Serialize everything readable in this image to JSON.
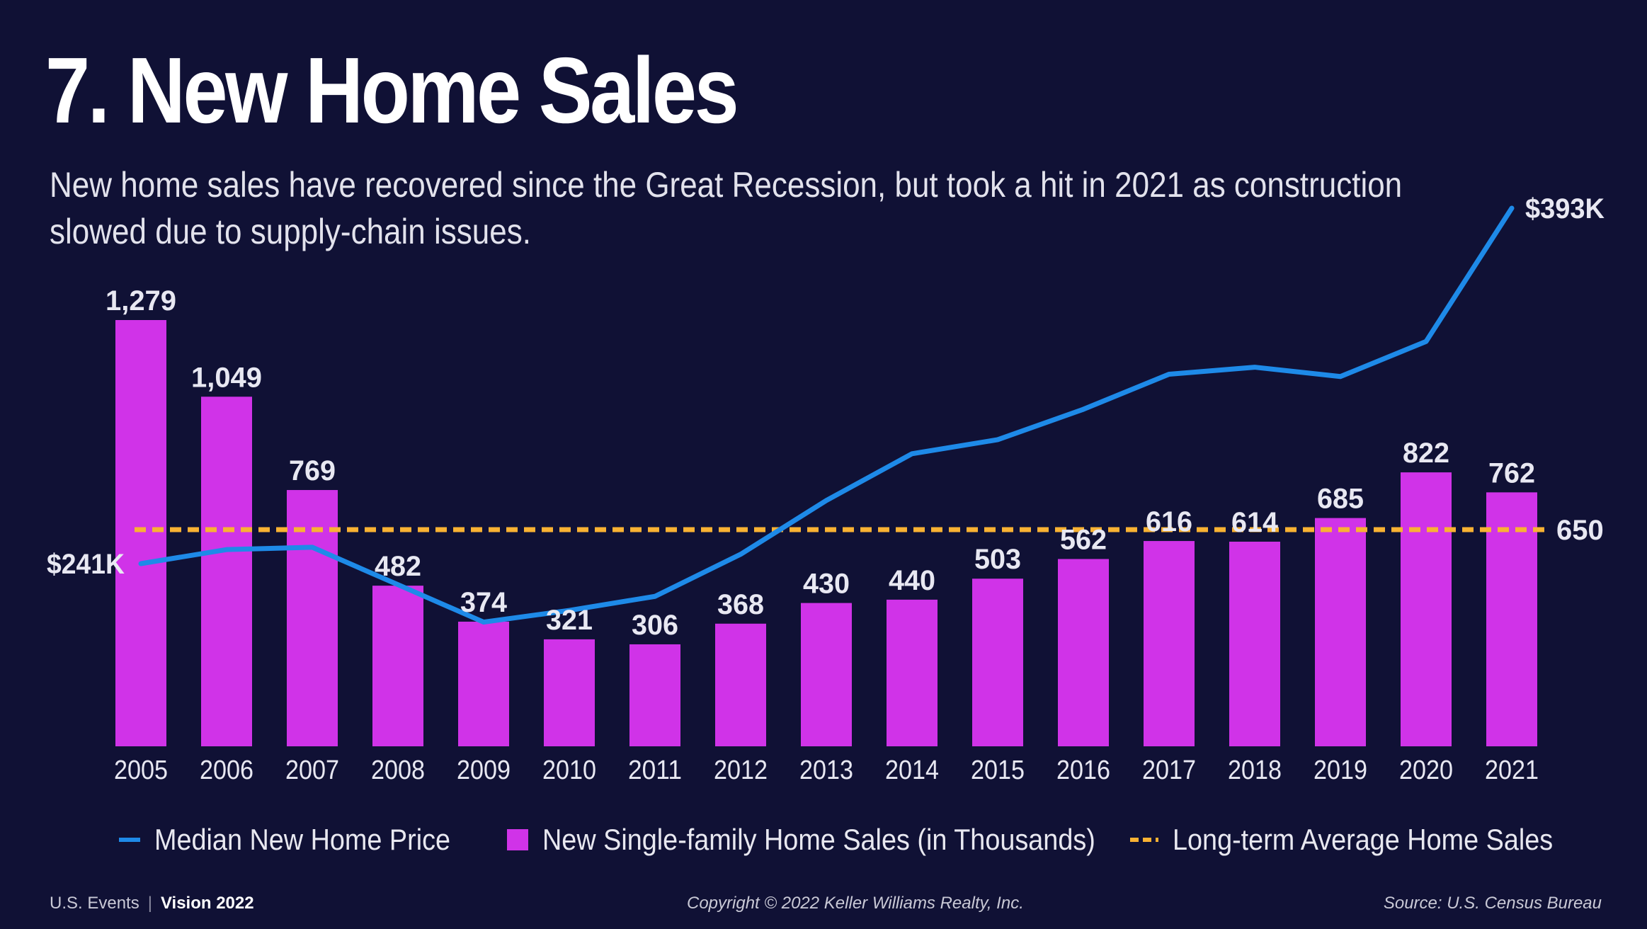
{
  "header": {
    "title": "7. New Home Sales",
    "subtitle": "New home sales have recovered since the Great Recession, but took a hit in 2021 as construction slowed due to supply-chain issues."
  },
  "chart_data": {
    "type": "bar",
    "categories": [
      "2005",
      "2006",
      "2007",
      "2008",
      "2009",
      "2010",
      "2011",
      "2012",
      "2013",
      "2014",
      "2015",
      "2016",
      "2017",
      "2018",
      "2019",
      "2020",
      "2021"
    ],
    "series": [
      {
        "name": "New Single-family Home Sales (in Thousands)",
        "type": "bar",
        "values": [
          1279,
          1049,
          769,
          482,
          374,
          321,
          306,
          368,
          430,
          440,
          503,
          562,
          616,
          614,
          685,
          822,
          762
        ],
        "labels": [
          "1,279",
          "1,049",
          "769",
          "482",
          "374",
          "321",
          "306",
          "368",
          "430",
          "440",
          "503",
          "562",
          "616",
          "614",
          "685",
          "822",
          "762"
        ],
        "color": "#d033e8"
      },
      {
        "name": "Median New Home Price",
        "type": "line",
        "values": [
          241,
          247,
          248,
          232,
          216,
          221,
          227,
          245,
          268,
          288,
          294,
          307,
          322,
          325,
          321,
          336,
          393
        ],
        "start_label": "$241K",
        "end_label": "$393K",
        "color": "#1e8ae8"
      },
      {
        "name": "Long-term Average Home Sales",
        "type": "reference-line",
        "value": 650,
        "label": "650",
        "color": "#f9b233"
      }
    ],
    "ylim": [
      0,
      1300
    ],
    "price_ylim": [
      150,
      420
    ],
    "grid": false,
    "legend": "bottom"
  },
  "footer": {
    "left_org": "U.S. Events",
    "left_event": "Vision 2022",
    "copyright": "Copyright © 2022 Keller Williams Realty, Inc.",
    "source": "Source: U.S. Census Bureau"
  }
}
